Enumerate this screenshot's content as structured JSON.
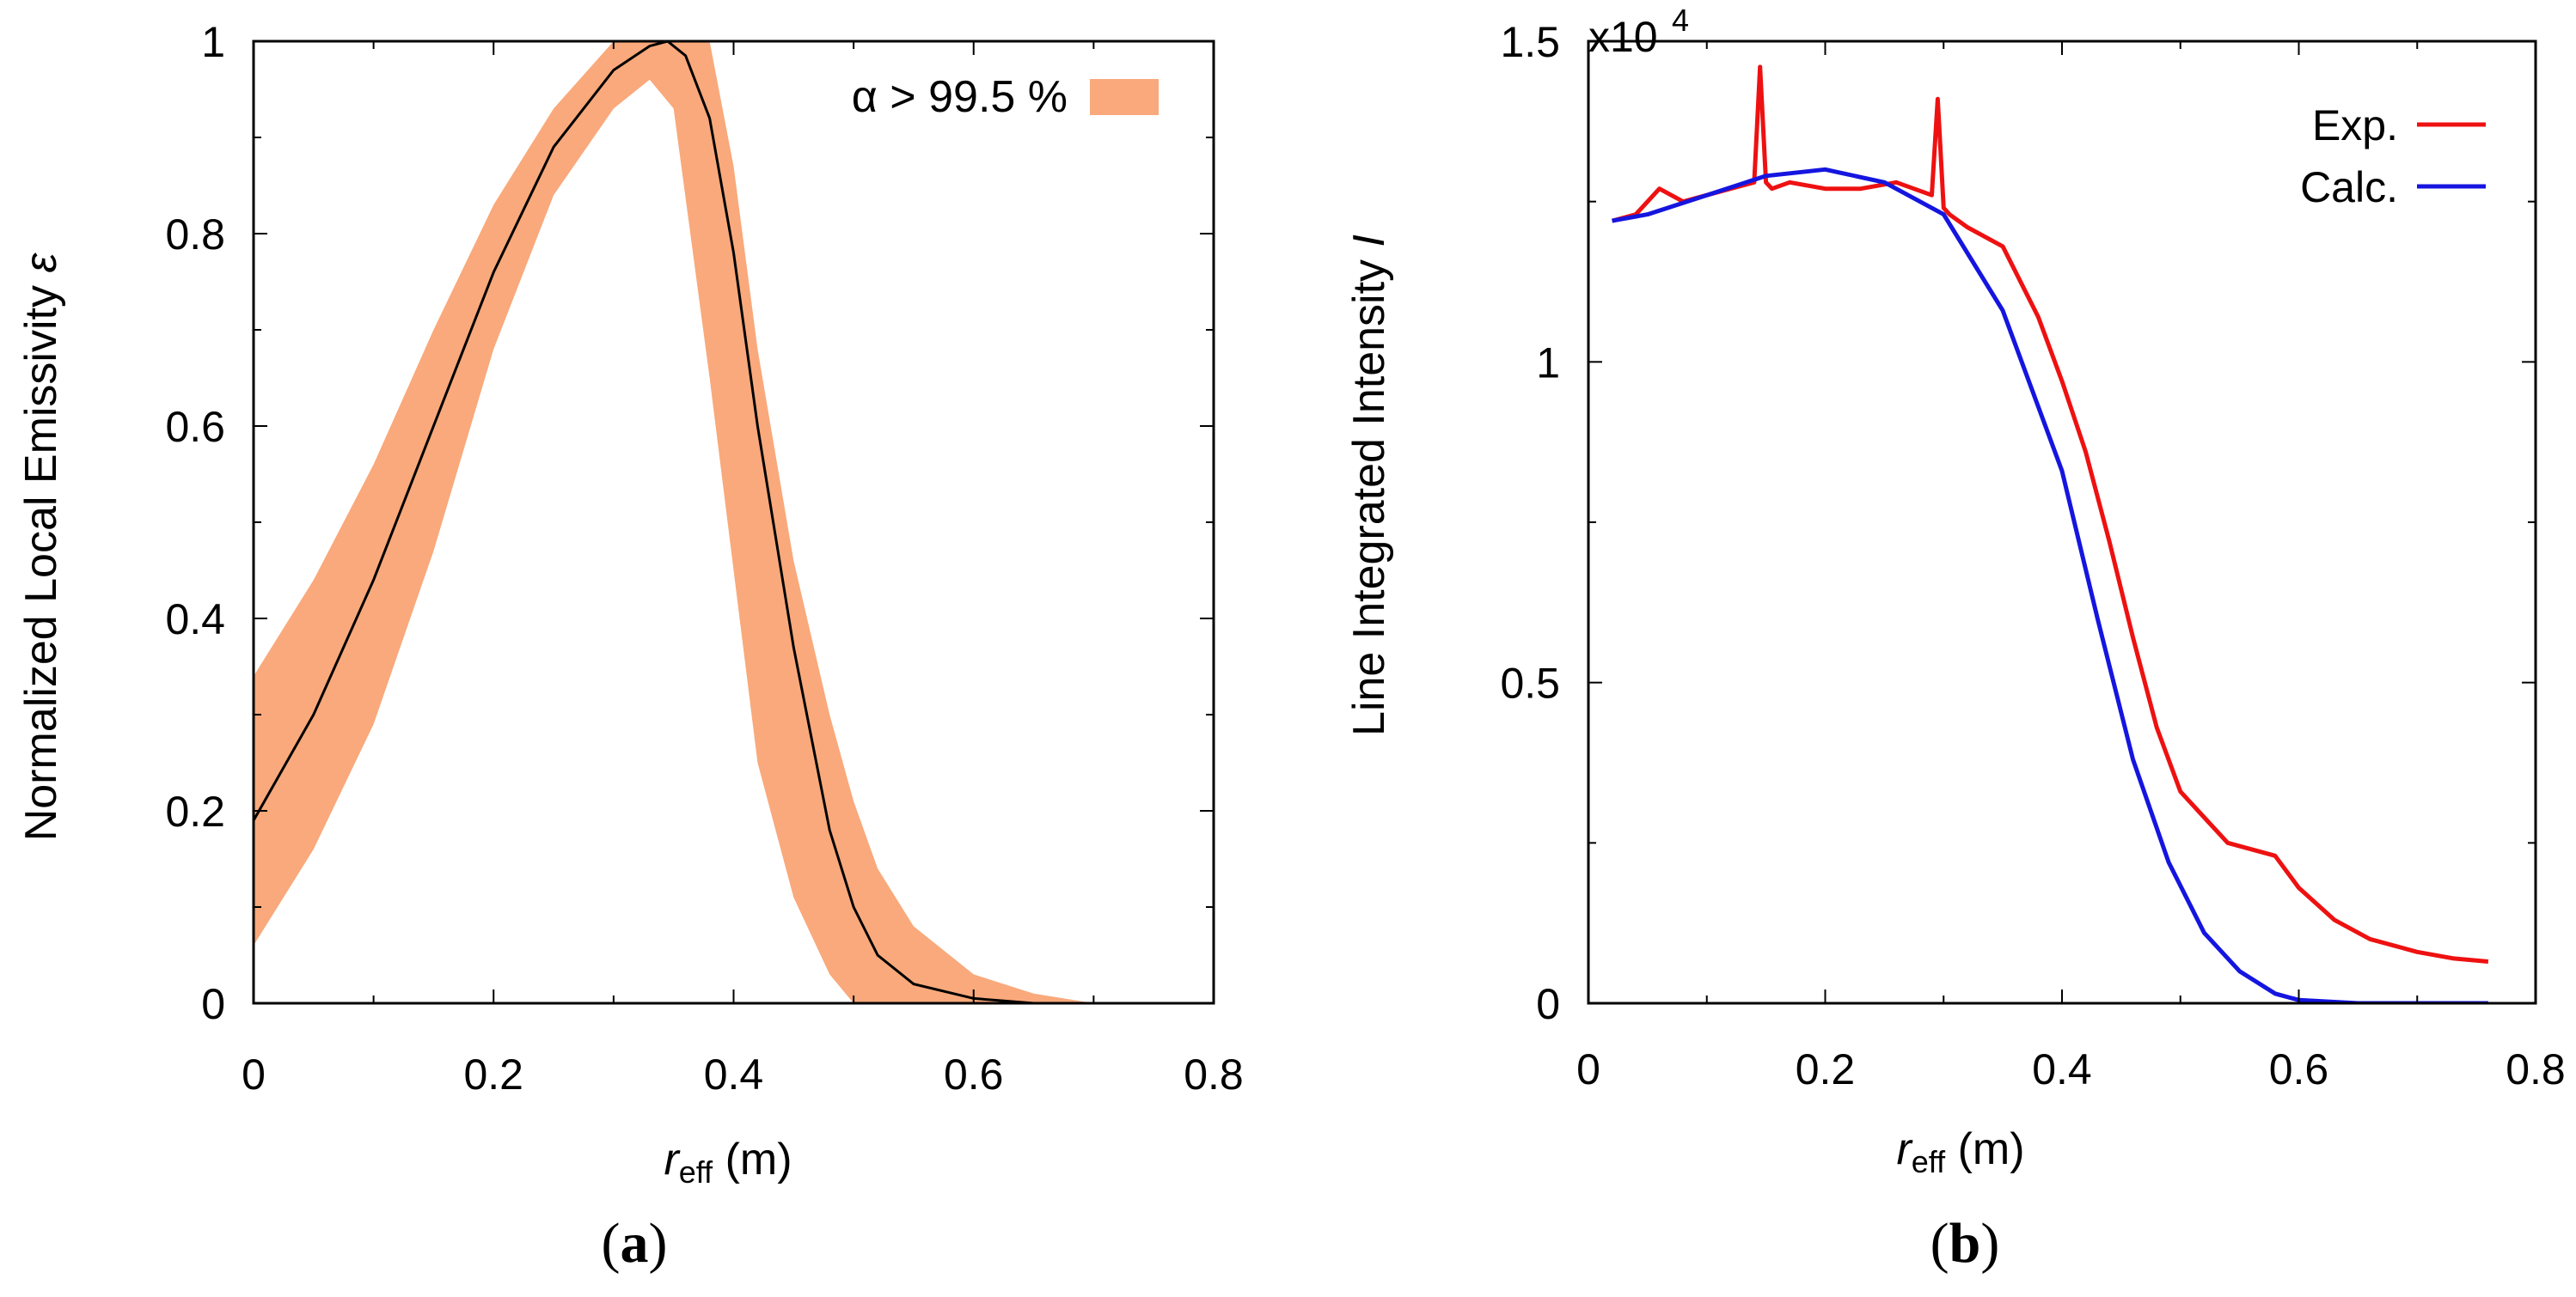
{
  "chart_data": [
    {
      "type": "line",
      "panel_label": "a",
      "xlabel_main": "r",
      "xlabel_sub": "eff",
      "xlabel_unit": " (m)",
      "ylabel_text": "Normalized Local Emissivity ",
      "ylabel_symbol": "ε",
      "xlim": [
        0,
        0.8
      ],
      "ylim": [
        0,
        1
      ],
      "xticks": [
        "0",
        "0.2",
        "0.4",
        "0.6",
        "0.8"
      ],
      "yticks": [
        "0",
        "0.2",
        "0.4",
        "0.6",
        "0.8",
        "1"
      ],
      "legend_position": "top-right",
      "band": {
        "name": "α > 99.5 %",
        "color": "#F9A97B",
        "x": [
          0,
          0.05,
          0.1,
          0.15,
          0.2,
          0.25,
          0.3,
          0.33,
          0.35,
          0.38,
          0.4,
          0.42,
          0.45,
          0.48,
          0.5,
          0.52,
          0.55,
          0.6,
          0.65,
          0.7
        ],
        "upper": [
          0.34,
          0.44,
          0.56,
          0.7,
          0.83,
          0.93,
          1.0,
          1.0,
          1.0,
          1.0,
          0.87,
          0.68,
          0.46,
          0.3,
          0.21,
          0.14,
          0.08,
          0.03,
          0.01,
          0.0
        ],
        "lower": [
          0.06,
          0.16,
          0.29,
          0.47,
          0.68,
          0.84,
          0.93,
          0.96,
          0.93,
          0.65,
          0.45,
          0.25,
          0.11,
          0.03,
          0.0,
          0.0,
          0.0,
          0.0,
          0.0,
          0.0
        ]
      },
      "series": [
        {
          "color": "#000000",
          "x": [
            0,
            0.05,
            0.1,
            0.15,
            0.2,
            0.25,
            0.3,
            0.33,
            0.345,
            0.36,
            0.38,
            0.4,
            0.42,
            0.45,
            0.48,
            0.5,
            0.52,
            0.55,
            0.6,
            0.65,
            0.7
          ],
          "y": [
            0.19,
            0.3,
            0.44,
            0.6,
            0.76,
            0.89,
            0.97,
            0.995,
            1.0,
            0.985,
            0.92,
            0.78,
            0.6,
            0.37,
            0.18,
            0.1,
            0.05,
            0.02,
            0.005,
            0.0,
            0.0
          ]
        }
      ]
    },
    {
      "type": "line",
      "panel_label": "b",
      "xlabel_main": "r",
      "xlabel_sub": "eff",
      "xlabel_unit": " (m)",
      "ylabel_text": "Line Integrated Intensity ",
      "ylabel_symbol": "I",
      "scale_label": "x10",
      "scale_exp": "4",
      "xlim": [
        0,
        0.8
      ],
      "ylim": [
        0,
        1.5
      ],
      "xticks": [
        "0",
        "0.2",
        "0.4",
        "0.6",
        "0.8"
      ],
      "yticks": [
        "0",
        "0.5",
        "1",
        "1.5"
      ],
      "legend_position": "top-right",
      "series": [
        {
          "name": "Exp.",
          "color": "#EE1111",
          "x": [
            0.02,
            0.04,
            0.06,
            0.08,
            0.1,
            0.12,
            0.14,
            0.145,
            0.15,
            0.155,
            0.17,
            0.2,
            0.23,
            0.26,
            0.29,
            0.295,
            0.3,
            0.305,
            0.32,
            0.35,
            0.38,
            0.4,
            0.42,
            0.44,
            0.46,
            0.48,
            0.5,
            0.52,
            0.54,
            0.56,
            0.58,
            0.6,
            0.63,
            0.66,
            0.7,
            0.73,
            0.76
          ],
          "y": [
            1.22,
            1.23,
            1.27,
            1.25,
            1.26,
            1.27,
            1.28,
            1.46,
            1.28,
            1.27,
            1.28,
            1.27,
            1.27,
            1.28,
            1.26,
            1.41,
            1.24,
            1.23,
            1.21,
            1.18,
            1.07,
            0.97,
            0.86,
            0.72,
            0.57,
            0.43,
            0.33,
            0.29,
            0.25,
            0.24,
            0.23,
            0.18,
            0.13,
            0.1,
            0.08,
            0.07,
            0.065
          ]
        },
        {
          "name": "Calc.",
          "color": "#1515E0",
          "x": [
            0.02,
            0.05,
            0.1,
            0.15,
            0.2,
            0.25,
            0.3,
            0.35,
            0.4,
            0.43,
            0.46,
            0.49,
            0.52,
            0.55,
            0.58,
            0.6,
            0.65,
            0.7,
            0.76
          ],
          "y": [
            1.22,
            1.23,
            1.26,
            1.29,
            1.3,
            1.28,
            1.23,
            1.08,
            0.83,
            0.6,
            0.38,
            0.22,
            0.11,
            0.05,
            0.015,
            0.005,
            0.0,
            0.0,
            0.0
          ]
        }
      ]
    }
  ]
}
